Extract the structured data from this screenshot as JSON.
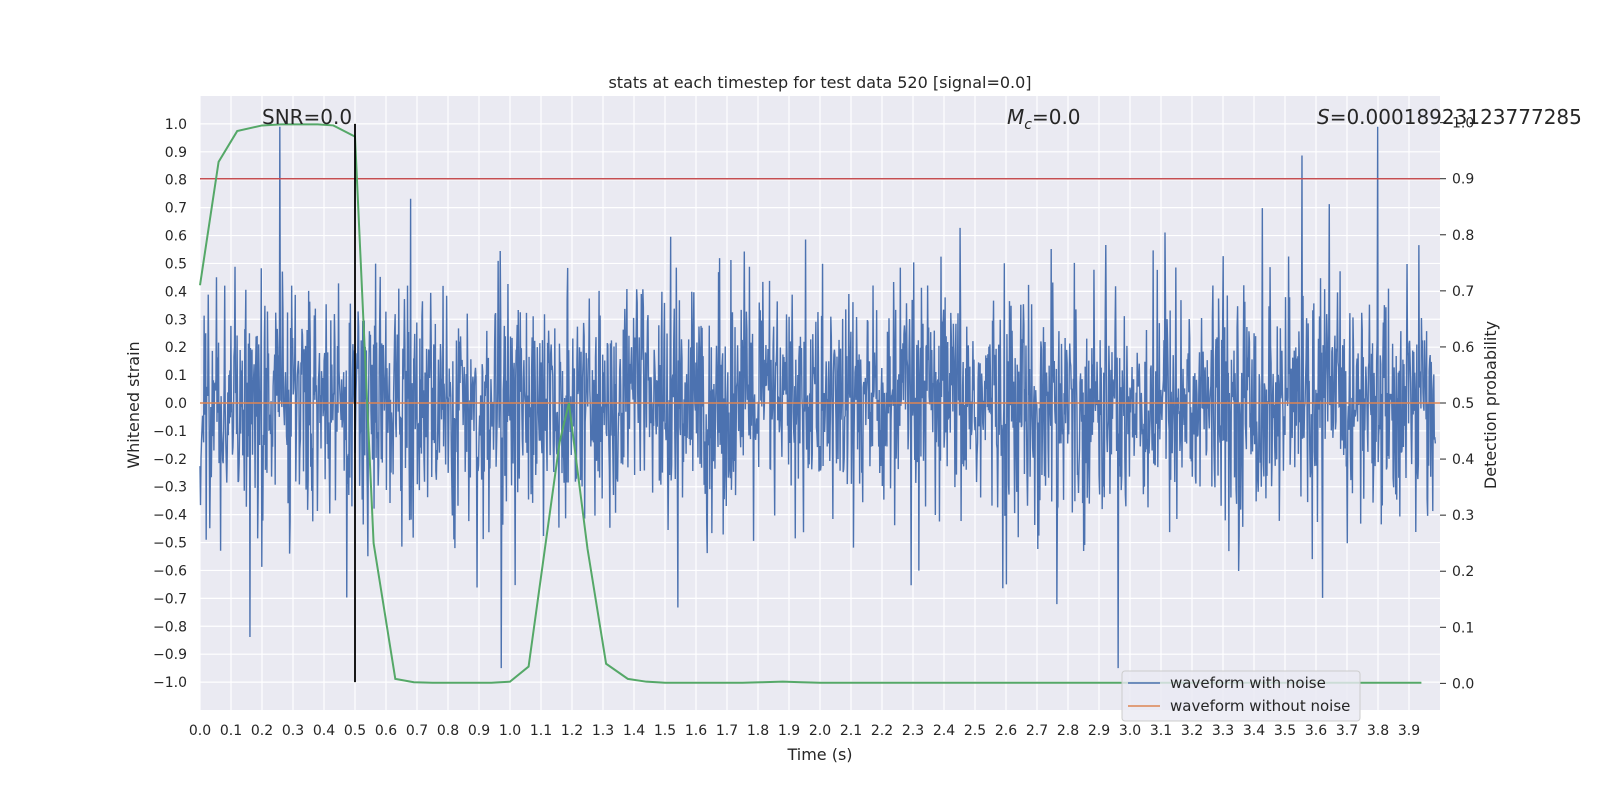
{
  "chart_data": {
    "type": "line",
    "title": "stats at each timestep for test data 520 [signal=0.0]",
    "xlabel": "Time (s)",
    "ylabel": "Whitened strain",
    "y2label": "Detection probability",
    "xlim": [
      0.0,
      4.0
    ],
    "ylim": [
      -1.1,
      1.1
    ],
    "y2lim": [
      -0.0475,
      1.0475
    ],
    "x_ticks": [
      "0.0",
      "0.1",
      "0.2",
      "0.3",
      "0.4",
      "0.5",
      "0.6",
      "0.7",
      "0.8",
      "0.9",
      "1.0",
      "1.1",
      "1.2",
      "1.3",
      "1.4",
      "1.5",
      "1.6",
      "1.7",
      "1.8",
      "1.9",
      "2.0",
      "2.1",
      "2.2",
      "2.3",
      "2.4",
      "2.5",
      "2.6",
      "2.7",
      "2.8",
      "2.9",
      "3.0",
      "3.1",
      "3.2",
      "3.3",
      "3.4",
      "3.5",
      "3.6",
      "3.7",
      "3.8",
      "3.9"
    ],
    "y_ticks": [
      "1.0",
      "0.9",
      "0.8",
      "0.7",
      "0.6",
      "0.5",
      "0.4",
      "0.3",
      "0.2",
      "0.1",
      "0.0",
      "−0.1",
      "−0.2",
      "−0.3",
      "−0.4",
      "−0.5",
      "−0.6",
      "−0.7",
      "−0.8",
      "−0.9",
      "−1.0"
    ],
    "y2_ticks": [
      "1.0",
      "0.9",
      "0.8",
      "0.7",
      "0.6",
      "0.5",
      "0.4",
      "0.3",
      "0.2",
      "0.1",
      "0.0"
    ],
    "grid": true,
    "legend_position": "bottom-right",
    "annotations": {
      "snr": "SNR=0.0",
      "mc_symbol": "M",
      "mc_sub": "c",
      "mc_value": "=0.0",
      "s_symbol": "S",
      "s_value": "=0.00018923123777285"
    },
    "threshold_line": {
      "y2": 0.9,
      "color": "#c44e52"
    },
    "vertical_marker": {
      "x": 0.5
    },
    "series": [
      {
        "name": "waveform with noise",
        "color": "#4c72b0",
        "description_range": [
          -0.95,
          0.99
        ]
      },
      {
        "name": "waveform without noise",
        "color": "#dd8452",
        "constant": 0.0
      },
      {
        "name": "detection probability",
        "color": "#55a868",
        "x": [
          0.0,
          0.06,
          0.12,
          0.2,
          0.26,
          0.32,
          0.38,
          0.43,
          0.5,
          0.56,
          0.63,
          0.69,
          0.75,
          0.81,
          0.88,
          0.94,
          1.0,
          1.06,
          1.12,
          1.16,
          1.19,
          1.25,
          1.31,
          1.38,
          1.44,
          1.5,
          1.56,
          1.63,
          1.69,
          1.75,
          1.81,
          1.88,
          1.94,
          2.0,
          2.5,
          3.0,
          3.5,
          3.94
        ],
        "values": [
          0.71,
          0.93,
          0.985,
          0.995,
          0.997,
          0.997,
          0.997,
          0.995,
          0.975,
          0.25,
          0.008,
          0.002,
          0.001,
          0.001,
          0.001,
          0.001,
          0.003,
          0.03,
          0.27,
          0.43,
          0.5,
          0.24,
          0.035,
          0.008,
          0.003,
          0.001,
          0.001,
          0.001,
          0.001,
          0.001,
          0.002,
          0.003,
          0.002,
          0.001,
          0.001,
          0.001,
          0.001,
          0.001
        ]
      }
    ]
  }
}
